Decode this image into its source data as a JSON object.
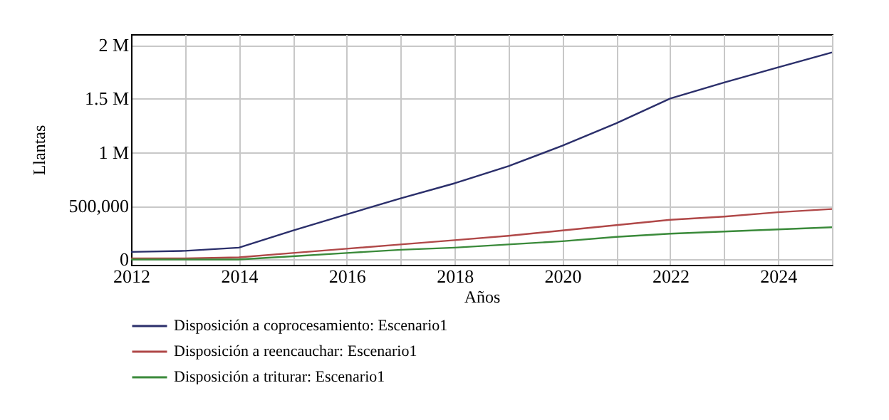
{
  "chart_data": {
    "type": "line",
    "xlabel": "Años",
    "ylabel": "Llantas",
    "x": [
      2012,
      2013,
      2014,
      2015,
      2016,
      2017,
      2018,
      2019,
      2020,
      2021,
      2022,
      2023,
      2024,
      2025
    ],
    "series": [
      {
        "name": "Disposición a coprocesamiento: Escenario1",
        "color": "#2b2f6b",
        "values": [
          70000,
          80000,
          110000,
          270000,
          420000,
          570000,
          710000,
          870000,
          1060000,
          1270000,
          1500000,
          1650000,
          1790000,
          1930000
        ]
      },
      {
        "name": "Disposición a reencauchar: Escenario1",
        "color": "#b04848",
        "values": [
          10000,
          10000,
          20000,
          60000,
          100000,
          140000,
          180000,
          220000,
          270000,
          320000,
          370000,
          400000,
          440000,
          470000
        ]
      },
      {
        "name": "Disposición a triturar: Escenario1",
        "color": "#3a8a3a",
        "values": [
          0,
          0,
          0,
          30000,
          60000,
          90000,
          110000,
          140000,
          170000,
          210000,
          240000,
          260000,
          280000,
          300000
        ]
      }
    ],
    "xlim": [
      2012,
      2025
    ],
    "xticks": [
      2012,
      {
        "value": 2013,
        "label": null
      },
      2014,
      {
        "value": 2015,
        "label": null
      },
      2016,
      {
        "value": 2017,
        "label": null
      },
      2018,
      {
        "value": 2019,
        "label": null
      },
      2020,
      {
        "value": 2021,
        "label": null
      },
      2022,
      {
        "value": 2023,
        "label": null
      },
      2024,
      {
        "value": 2025,
        "label": null
      }
    ],
    "ylim": [
      -50000,
      2100000
    ],
    "yticks": [
      {
        "value": 0,
        "label": "0"
      },
      {
        "value": 500000,
        "label": "500,000"
      },
      {
        "value": 1000000,
        "label": "1 M"
      },
      {
        "value": 1500000,
        "label": "1.5 M"
      },
      {
        "value": 2000000,
        "label": "2 M"
      }
    ],
    "grid": true,
    "legend": "bottom"
  }
}
